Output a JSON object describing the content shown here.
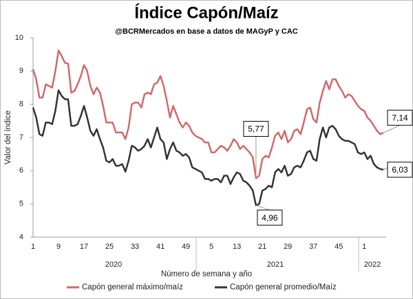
{
  "chart_data": {
    "type": "line",
    "title": "Índice Capón/Maíz",
    "subtitle": "@BCRMercados en base a datos de MAGyP y CAC",
    "x_label": "Número de semana y año",
    "y_label": "Valor del índice",
    "categories": [
      "1",
      null,
      null,
      null,
      null,
      null,
      null,
      null,
      "9",
      null,
      null,
      null,
      null,
      null,
      null,
      null,
      "17",
      null,
      null,
      null,
      null,
      null,
      null,
      null,
      "25",
      null,
      null,
      null,
      null,
      null,
      null,
      null,
      "33",
      null,
      null,
      null,
      null,
      null,
      null,
      null,
      "41",
      null,
      null,
      null,
      null,
      null,
      null,
      null,
      "49",
      null,
      null,
      null,
      null,
      null,
      null,
      null,
      "5",
      null,
      null,
      null,
      null,
      null,
      null,
      null,
      "13",
      null,
      null,
      null,
      null,
      null,
      null,
      null,
      "21",
      null,
      null,
      null,
      null,
      null,
      null,
      null,
      "29",
      null,
      null,
      null,
      null,
      null,
      null,
      null,
      "37",
      null,
      null,
      null,
      null,
      null,
      null,
      null,
      "45",
      null,
      null,
      null,
      null,
      null,
      null,
      null,
      "1",
      null,
      null,
      null,
      null,
      null,
      null
    ],
    "x_groups": [
      "2020",
      "2021",
      "2022"
    ],
    "ylim": [
      4,
      10
    ],
    "yticks": [
      4,
      5,
      6,
      7,
      8,
      9,
      10
    ],
    "legend": "bottom",
    "series": [
      {
        "name": "Capón general máximo/maíz",
        "color": "#cf6a6a",
        "values": [
          9.05,
          8.75,
          8.2,
          8.2,
          8.6,
          8.55,
          8.5,
          9.0,
          9.62,
          9.45,
          9.25,
          9.22,
          8.35,
          8.4,
          8.6,
          8.85,
          9.18,
          9.0,
          8.55,
          8.3,
          8.5,
          8.35,
          7.95,
          7.45,
          7.45,
          7.45,
          7.15,
          7.15,
          7.15,
          6.95,
          7.3,
          8.0,
          8.05,
          8.05,
          7.9,
          8.3,
          8.35,
          8.3,
          8.6,
          8.65,
          8.85,
          8.55,
          8.1,
          7.6,
          7.95,
          7.7,
          7.45,
          7.3,
          7.45,
          7.35,
          7.15,
          7.05,
          7.0,
          6.95,
          6.85,
          6.85,
          6.55,
          6.55,
          6.65,
          6.75,
          6.7,
          6.6,
          6.75,
          6.95,
          6.85,
          6.65,
          6.75,
          6.65,
          6.55,
          6.4,
          5.77,
          5.85,
          6.35,
          6.45,
          6.4,
          6.7,
          7.05,
          7.15,
          6.95,
          7.2,
          6.85,
          6.95,
          7.2,
          7.25,
          7.1,
          7.45,
          7.85,
          7.9,
          7.55,
          7.45,
          8.05,
          8.4,
          8.7,
          8.45,
          8.75,
          8.75,
          8.55,
          8.4,
          8.2,
          8.3,
          8.25,
          8.1,
          7.95,
          7.85,
          7.8,
          7.6,
          7.5,
          7.35,
          7.2,
          7.1,
          7.14
        ],
        "value_labels": [
          null,
          null,
          null,
          null,
          null,
          null,
          null,
          null,
          null,
          null,
          null,
          null,
          null,
          null,
          null,
          null,
          null,
          null,
          null,
          null,
          null,
          null,
          null,
          null,
          null,
          null,
          null,
          null,
          null,
          null,
          null,
          null,
          null,
          null,
          null,
          null,
          null,
          null,
          null,
          null,
          null,
          null,
          null,
          null,
          null,
          null,
          null,
          null,
          null,
          null,
          null,
          null,
          null,
          null,
          null,
          null,
          null,
          null,
          null,
          null,
          null,
          null,
          null,
          null,
          null,
          null,
          null,
          null,
          null,
          null,
          "5,77",
          null,
          null,
          null,
          null,
          null,
          null,
          null,
          null,
          null,
          null,
          null,
          null,
          null,
          null,
          null,
          null,
          null,
          null,
          null,
          null,
          null,
          null,
          null,
          null,
          null,
          null,
          null,
          null,
          null,
          null,
          null,
          null,
          null,
          null,
          null,
          null,
          null,
          null,
          null,
          "7,14"
        ]
      },
      {
        "name": "Capón general promedio/Maíz",
        "color": "#333333",
        "values": [
          7.9,
          7.6,
          7.1,
          7.05,
          7.45,
          7.45,
          7.4,
          7.8,
          8.42,
          8.25,
          8.15,
          8.15,
          7.35,
          7.35,
          7.4,
          7.65,
          7.95,
          7.6,
          7.2,
          7.05,
          7.25,
          6.95,
          6.7,
          6.3,
          6.25,
          6.35,
          6.15,
          6.15,
          6.2,
          5.97,
          6.3,
          6.75,
          6.7,
          6.6,
          6.65,
          6.75,
          6.95,
          6.7,
          7.0,
          7.3,
          6.95,
          6.85,
          6.35,
          6.65,
          6.85,
          6.6,
          6.55,
          6.45,
          6.5,
          6.4,
          6.1,
          6.05,
          6.0,
          5.95,
          5.75,
          5.75,
          5.7,
          5.75,
          5.75,
          5.65,
          5.85,
          5.85,
          5.6,
          5.8,
          5.95,
          5.9,
          5.7,
          5.65,
          5.55,
          5.4,
          4.96,
          5.0,
          5.4,
          5.45,
          5.55,
          5.5,
          5.95,
          6.05,
          5.95,
          6.15,
          5.85,
          5.9,
          6.1,
          6.15,
          6.1,
          6.3,
          6.55,
          6.6,
          6.35,
          6.3,
          6.95,
          7.3,
          7.0,
          7.3,
          7.35,
          7.25,
          7.05,
          6.95,
          6.9,
          6.9,
          6.85,
          6.8,
          6.55,
          6.5,
          6.55,
          6.35,
          6.45,
          6.2,
          6.1,
          6.05,
          6.03
        ],
        "value_labels": [
          null,
          null,
          null,
          null,
          null,
          null,
          null,
          null,
          null,
          null,
          null,
          null,
          null,
          null,
          null,
          null,
          null,
          null,
          null,
          null,
          null,
          null,
          null,
          null,
          null,
          null,
          null,
          null,
          null,
          null,
          null,
          null,
          null,
          null,
          null,
          null,
          null,
          null,
          null,
          null,
          null,
          null,
          null,
          null,
          null,
          null,
          null,
          null,
          null,
          null,
          null,
          null,
          null,
          null,
          null,
          null,
          null,
          null,
          null,
          null,
          null,
          null,
          null,
          null,
          null,
          null,
          null,
          null,
          null,
          null,
          "4,96",
          null,
          null,
          null,
          null,
          null,
          null,
          null,
          null,
          null,
          null,
          null,
          null,
          null,
          null,
          null,
          null,
          null,
          null,
          null,
          null,
          null,
          null,
          null,
          null,
          null,
          null,
          null,
          null,
          null,
          null,
          null,
          null,
          null,
          null,
          null,
          null,
          null,
          null,
          null,
          "6,03"
        ]
      }
    ]
  }
}
